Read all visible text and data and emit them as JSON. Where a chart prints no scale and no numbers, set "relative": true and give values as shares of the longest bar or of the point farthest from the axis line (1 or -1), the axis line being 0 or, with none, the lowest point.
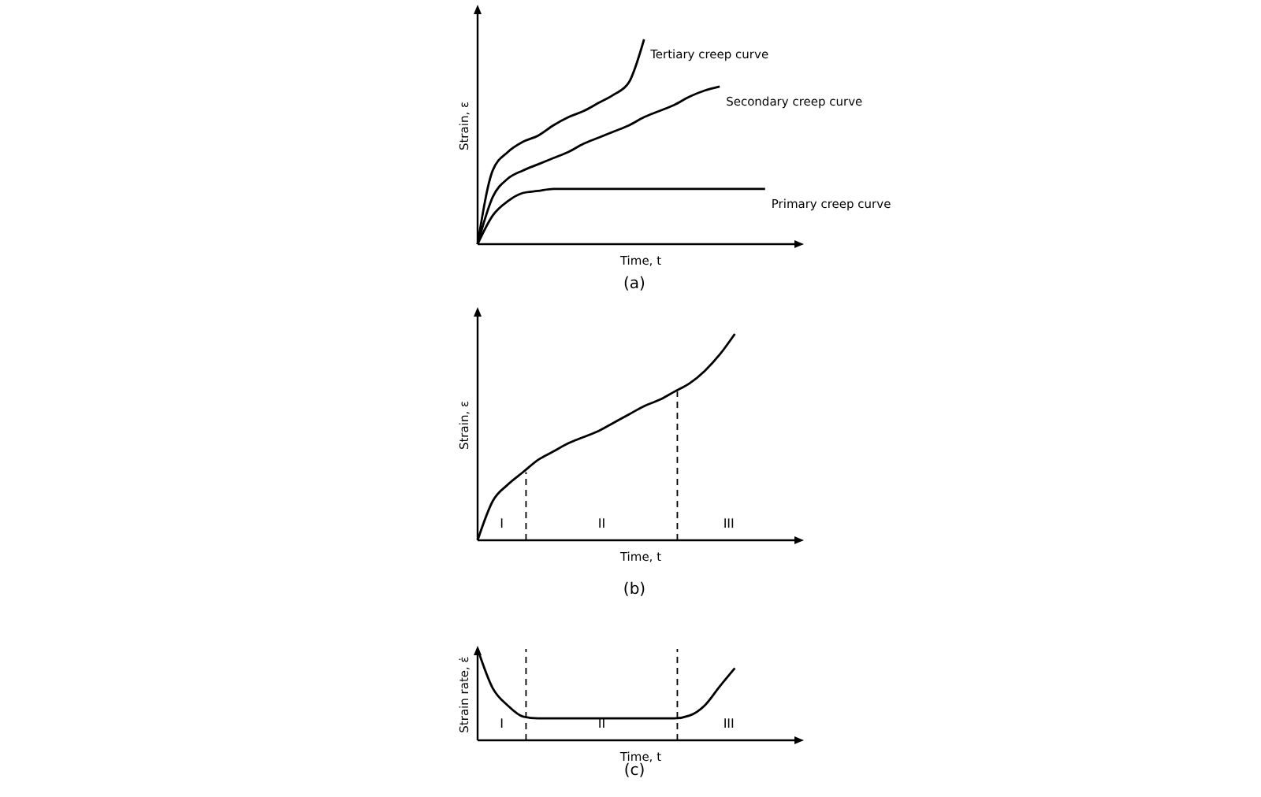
{
  "chart_data": [
    {
      "type": "line",
      "title": "(a)",
      "xlabel": "Time, t",
      "ylabel": "Strain, ε",
      "relative": true,
      "legend": false,
      "categories": [
        null,
        null,
        null,
        null,
        null,
        null,
        null,
        null,
        null,
        null,
        null,
        null,
        null,
        null,
        null,
        null,
        null,
        null,
        null,
        null,
        null
      ],
      "series": [
        {
          "name": "Tertiary creep curve",
          "color": "#000000",
          "values": [
            0,
            0.36,
            0.45,
            0.5,
            0.53,
            0.58,
            0.62,
            0.65,
            0.69,
            0.73,
            0.79,
            1.0,
            null,
            null,
            null,
            null,
            null,
            null,
            null,
            null,
            null
          ]
        },
        {
          "name": "Secondary creep curve",
          "color": "#000000",
          "values": [
            0,
            0.23,
            0.32,
            0.36,
            0.39,
            0.42,
            0.45,
            0.49,
            0.52,
            0.55,
            0.58,
            0.62,
            0.65,
            0.68,
            0.72,
            0.75,
            0.77,
            null,
            null,
            null,
            null
          ]
        },
        {
          "name": "Primary creep curve",
          "color": "#000000",
          "values": [
            0,
            0.14,
            0.21,
            0.25,
            0.26,
            0.27,
            0.27,
            0.27,
            0.27,
            0.27,
            0.27,
            0.27,
            0.27,
            0.27,
            0.27,
            0.27,
            0.27,
            0.27,
            0.27,
            0.27,
            null
          ]
        }
      ]
    },
    {
      "type": "line",
      "title": "(b)",
      "xlabel": "Time, t",
      "ylabel": "Strain, ε",
      "relative": true,
      "legend": false,
      "categories": [
        null,
        null,
        null,
        null,
        null,
        null,
        null,
        null,
        null,
        null,
        null,
        null,
        null,
        null,
        null,
        null,
        null,
        null,
        null,
        null,
        null
      ],
      "series": [
        {
          "color": "#000000",
          "values": [
            0,
            0.19,
            0.27,
            0.33,
            0.39,
            0.43,
            0.47,
            0.5,
            0.53,
            0.57,
            0.61,
            0.65,
            0.68,
            0.72,
            0.76,
            0.82,
            0.9,
            1.0,
            null,
            null,
            null
          ]
        }
      ],
      "annotations": [
        "I",
        "II",
        "III"
      ]
    },
    {
      "type": "line",
      "title": "(c)",
      "xlabel": "Time, t",
      "ylabel": "Strain rate, ε̇",
      "relative": true,
      "legend": false,
      "categories": [
        null,
        null,
        null,
        null,
        null,
        null,
        null,
        null,
        null,
        null,
        null,
        null,
        null,
        null,
        null,
        null,
        null,
        null,
        null,
        null,
        null
      ],
      "series": [
        {
          "color": "#000000",
          "values": [
            1.0,
            0.57,
            0.38,
            0.26,
            0.24,
            0.24,
            0.24,
            0.24,
            0.24,
            0.24,
            0.24,
            0.24,
            0.24,
            0.24,
            0.27,
            0.38,
            0.59,
            0.79,
            null,
            null,
            null
          ]
        }
      ],
      "annotations": [
        "I",
        "II",
        "III"
      ]
    }
  ]
}
